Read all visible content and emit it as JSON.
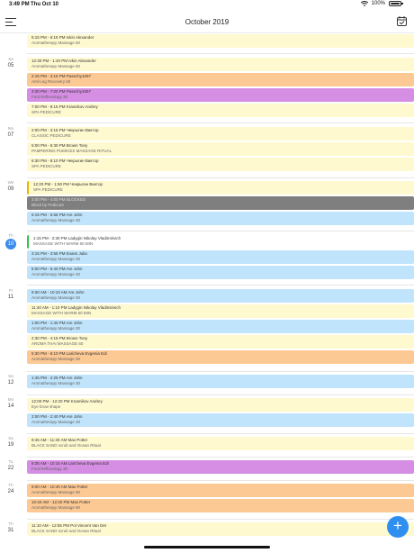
{
  "status_bar": {
    "time": "3:49 PM",
    "date": "Thu Oct 10",
    "battery": "100%"
  },
  "header": {
    "title": "October 2019",
    "menu_icon": "hamburger-menu-icon",
    "calendar_icon": "calendar-icon"
  },
  "colors": {
    "yellow": "#fff9cf",
    "orange": "#fcc893",
    "purple": "#d58ee3",
    "blue": "#bfe4fb",
    "gray": "#7f7f7f",
    "today": "#3b8ced",
    "fab": "#2f8ff0"
  },
  "days": [
    {
      "weekday": "Sa",
      "day": "05"
    },
    {
      "weekday": "Mo",
      "day": "07"
    },
    {
      "weekday": "We",
      "day": "09"
    },
    {
      "weekday": "Th",
      "day": "10"
    },
    {
      "weekday": "Fr",
      "day": "11"
    },
    {
      "weekday": "Sa",
      "day": "12"
    },
    {
      "weekday": "Mo",
      "day": "14"
    },
    {
      "weekday": "Sa",
      "day": "19"
    },
    {
      "weekday": "Tu",
      "day": "22"
    },
    {
      "weekday": "Th",
      "day": "24"
    },
    {
      "weekday": "Th",
      "day": "31"
    }
  ],
  "appointments": [
    {
      "time": "5:15 PM - 6:15 PM",
      "client": "Ivkin Alexander",
      "service": "Aromatherapy Massage 60",
      "color": "yellow"
    },
    {
      "time": "12:30 PM - 1:40 PM",
      "client": "Ivkin Alexander",
      "service": "Aromatherapy Massage 60",
      "color": "yellow"
    },
    {
      "time": "2:15 PM - 3:15 PM",
      "client": "Pasechy1097",
      "service": "Anti-Leg Recovery 60",
      "color": "orange"
    },
    {
      "time": "3:30 PM - 7:00 PM",
      "client": "Pasechy1097",
      "service": "Foot Reflexology 30",
      "color": "purple"
    },
    {
      "time": "7:00 PM - 8:15 PM",
      "client": "Krasnikov Andrey",
      "service": "SPA PEDICURE",
      "color": "yellow"
    },
    {
      "time": "2:00 PM - 3:15 PM",
      "client": "Чекрыгин Виктор",
      "service": "CLASSIC PEDICURE",
      "color": "yellow"
    },
    {
      "time": "5:00 PM - 6:30 PM",
      "client": "Brown Tony",
      "service": "PAMPERING PUMICES MASSAGE RITUAL",
      "color": "yellow"
    },
    {
      "time": "6:30 PM - 8:10 PM",
      "client": "Чекрыгин Виктор",
      "service": "SPA PEDICURE",
      "color": "yellow"
    },
    {
      "time": "12:20 PM - 1:50 PM",
      "client": "Чекрыгин Виктор",
      "service": "SPA PEDICURE",
      "color": "yellow",
      "mark": "yellow"
    },
    {
      "time": "3:00 PM - 4:00 PM BLOCKED",
      "client": "",
      "service": "Block by Pedicure",
      "color": "gray"
    },
    {
      "time": "6:15 PM - 6:55 PM",
      "client": "Are John",
      "service": "Aromatherapy Massage 30",
      "color": "blue"
    },
    {
      "time": "1:15 PM - 2:30 PM",
      "client": "Ladygin Nikolay Vladimirivich",
      "service": "MASSAGE WITH WARM 60 MIN",
      "color": "white",
      "mark": "green"
    },
    {
      "time": "3:15 PM - 3:55 PM",
      "client": "Evans Julia",
      "service": "Aromatherapy Massage 30",
      "color": "blue"
    },
    {
      "time": "5:00 PM - 5:40 PM",
      "client": "Are John",
      "service": "Aromatherapy Massage 30",
      "color": "blue"
    },
    {
      "time": "9:30 AM - 10:10 AM",
      "client": "Are John",
      "service": "Aromatherapy Massage 30",
      "color": "blue"
    },
    {
      "time": "11:40 AM - 1:10 PM",
      "client": "Ladygin Nikolay Vladimirivich",
      "service": "MASSAGE WITH WARM 60 MIN",
      "color": "yellow"
    },
    {
      "time": "1:00 PM - 1:40 PM",
      "client": "Are John",
      "service": "Aromatherapy Massage 30",
      "color": "blue"
    },
    {
      "time": "2:30 PM - 4:15 PM",
      "client": "Brown Tony",
      "service": "AROMA THAI MASSAGE 60",
      "color": "yellow"
    },
    {
      "time": "5:30 PM - 6:10 PM",
      "client": "Laricheva Evgenia Edi",
      "service": "Aromatherapy Massage 30",
      "color": "orange"
    },
    {
      "time": "1:45 PM - 2:25 PM",
      "client": "Are John",
      "service": "Aromatherapy Massage 30",
      "color": "blue"
    },
    {
      "time": "12:00 PM - 12:20 PM",
      "client": "Krasnikov Andrey",
      "service": "Eye brow shape",
      "color": "yellow"
    },
    {
      "time": "2:00 PM - 2:40 PM",
      "client": "Are John",
      "service": "Aromatherapy Massage 30",
      "color": "blue"
    },
    {
      "time": "9:45 AM - 11:30 AM",
      "client": "Max Potter",
      "service": "BLACK SAND scrub and Ocean Ritual",
      "color": "yellow"
    },
    {
      "time": "9:35 AM - 10:15 AM",
      "client": "Laricheva Evgenia Edi",
      "service": "Foot Reflexology 30",
      "color": "purple"
    },
    {
      "time": "9:00 AM - 10:40 AM",
      "client": "Max Potter",
      "service": "Aromatherapy Massage 90",
      "color": "orange"
    },
    {
      "time": "10:40 AM - 12:20 PM",
      "client": "Max Potter",
      "service": "Aromatherapy Massage 90",
      "color": "orange"
    },
    {
      "time": "11:10 AM - 12:55 PM",
      "client": "Pol Vincent Van Der",
      "service": "BLACK SAND scrub and Ocean Ritual",
      "color": "yellow"
    }
  ],
  "fab": {
    "label": "+"
  }
}
